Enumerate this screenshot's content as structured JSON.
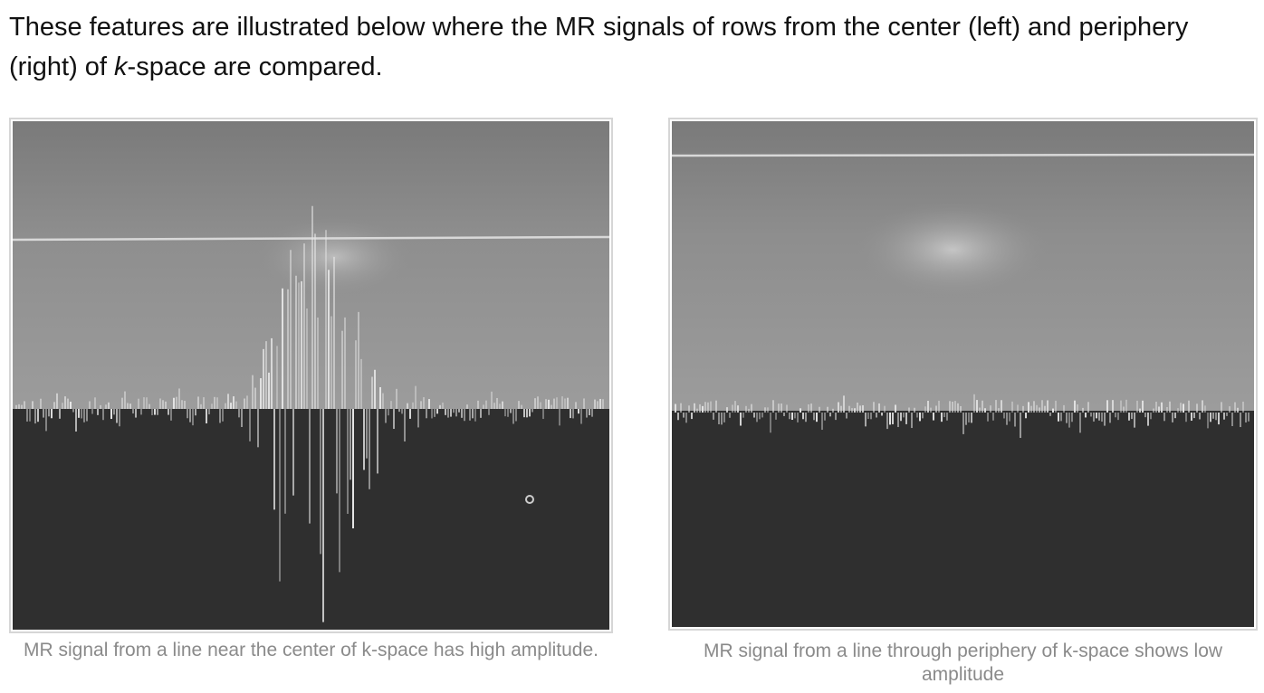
{
  "intro": {
    "text_before": "These features are illustrated below where the MR signals of rows from the center (left) and periphery (right) of ",
    "k_italic": "k",
    "text_after": "-space are compared."
  },
  "figures": [
    {
      "caption": "MR signal from a line near the center of k-space has high amplitude."
    },
    {
      "caption": "MR signal from a line through periphery of k-space shows low amplitude"
    }
  ],
  "colors": {
    "upper_panel": "#8c8c8c",
    "lower_panel": "#2f2f2f",
    "trace": "#e8e8e8",
    "caption": "#8a8a8a",
    "frame_border": "#d6d6d6"
  }
}
